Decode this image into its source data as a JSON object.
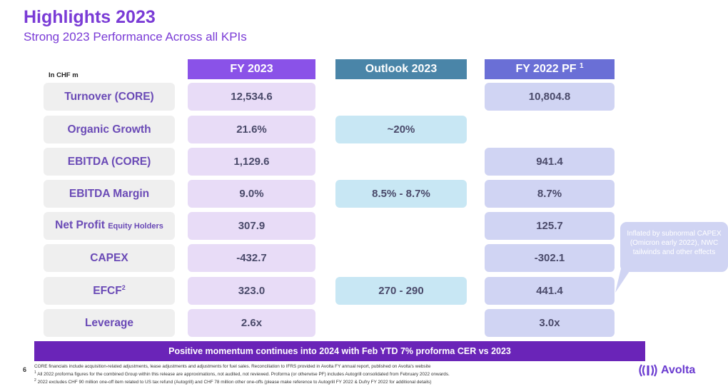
{
  "title": "Highlights 2023",
  "subtitle": "Strong 2023 Performance Across all KPIs",
  "unit": "In CHF m",
  "columns": {
    "fy2023": "FY 2023",
    "outlook": "Outlook 2023",
    "fy2022": "FY 2022 PF",
    "fy2022_sup": "1"
  },
  "rows": [
    {
      "label": "Turnover (CORE)",
      "fy2023": "12,534.6",
      "outlook": "",
      "fy2022": "10,804.8"
    },
    {
      "label": "Organic Growth",
      "fy2023": "21.6%",
      "outlook": "~20%",
      "fy2022": ""
    },
    {
      "label": "EBITDA (CORE)",
      "fy2023": "1,129.6",
      "outlook": "",
      "fy2022": "941.4"
    },
    {
      "label": "EBITDA Margin",
      "fy2023": "9.0%",
      "outlook": "8.5% - 8.7%",
      "fy2022": "8.7%"
    },
    {
      "label": "Net Profit",
      "label_small": "Equity Holders",
      "fy2023": "307.9",
      "outlook": "",
      "fy2022": "125.7"
    },
    {
      "label": "CAPEX",
      "fy2023": "-432.7",
      "outlook": "",
      "fy2022": "-302.1"
    },
    {
      "label": "EFCF",
      "label_sup": "2",
      "fy2023": "323.0",
      "outlook": "270 - 290",
      "fy2022": "441.4"
    },
    {
      "label": "Leverage",
      "fy2023": "2.6x",
      "outlook": "",
      "fy2022": "3.0x"
    }
  ],
  "callout": "Inflated by subnormal CAPEX (Omicron early 2022), NWC tailwinds and other effects",
  "banner": "Positive momentum continues into 2024 with Feb YTD 7% proforma CER vs 2023",
  "page_number": "6",
  "footnotes": {
    "line0": "CORE financials include acquisition-related adjustments, lease adjustments and adjustments for fuel sales. Reconciliation to IFRS provided in Avolta FY annual report, published on Avolta's website",
    "sup1": "1",
    "line1": "All 2022 proforma figures for the combined Group within this release are approximations, not audited, not reviewed. Proforma (or otherwise PF) includes Autogrill consolidated from February 2022 onwards.",
    "sup2": "2",
    "line2": "2022 excludes CHF 90 million one-off item related to US tax refund (Autogrill) and CHF 78 million other one-offs (please make reference to Autogrill FY 2022 & Dufry FY 2022 for additional details)"
  },
  "logo_text": "Avolta",
  "colors": {
    "accent": "#7a3bd6",
    "fy2023_header": "#8a52e8",
    "outlook_header": "#4a85a8",
    "fy2022_header": "#6a6fd6",
    "banner": "#6a24b8"
  }
}
